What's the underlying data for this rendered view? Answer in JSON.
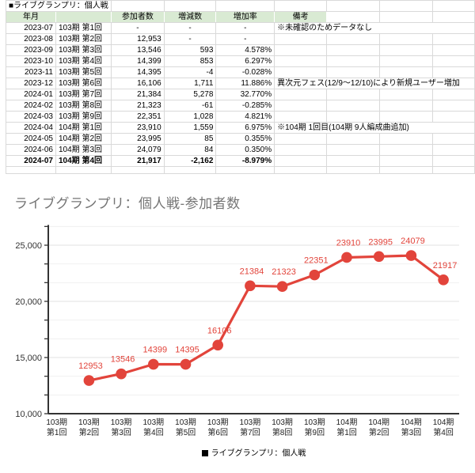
{
  "sheet": {
    "title": "■ライブグランプリ：個人戦",
    "header": [
      "年月",
      "",
      "参加者数",
      "増減数",
      "増加率",
      "備考"
    ],
    "header_bg": "#d9ead3",
    "grid_color": "#d9d9d9",
    "rows": [
      {
        "month": "2023-07",
        "round": "103期 第1回",
        "participants": "-",
        "change": "-",
        "rate": "-",
        "note": "※未確認のためデータなし",
        "bold": false
      },
      {
        "month": "2023-08",
        "round": "103期 第2回",
        "participants": "12,953",
        "change": "-",
        "rate": "-",
        "note": "",
        "bold": false
      },
      {
        "month": "2023-09",
        "round": "103期 第3回",
        "participants": "13,546",
        "change": "593",
        "rate": "4.578%",
        "note": "",
        "bold": false
      },
      {
        "month": "2023-10",
        "round": "103期 第4回",
        "participants": "14,399",
        "change": "853",
        "rate": "6.297%",
        "note": "",
        "bold": false
      },
      {
        "month": "2023-11",
        "round": "103期 第5回",
        "participants": "14,395",
        "change": "-4",
        "rate": "-0.028%",
        "note": "",
        "bold": false
      },
      {
        "month": "2023-12",
        "round": "103期 第6回",
        "participants": "16,106",
        "change": "1,711",
        "rate": "11.886%",
        "note": "異次元フェス(12/9〜12/10)により新規ユーザー増加",
        "bold": false
      },
      {
        "month": "2024-01",
        "round": "103期 第7回",
        "participants": "21,384",
        "change": "5,278",
        "rate": "32.770%",
        "note": "",
        "bold": false
      },
      {
        "month": "2024-02",
        "round": "103期 第8回",
        "participants": "21,323",
        "change": "-61",
        "rate": "-0.285%",
        "note": "",
        "bold": false
      },
      {
        "month": "2024-03",
        "round": "103期 第9回",
        "participants": "22,351",
        "change": "1,028",
        "rate": "4.821%",
        "note": "",
        "bold": false
      },
      {
        "month": "2024-04",
        "round": "104期 第1回",
        "participants": "23,910",
        "change": "1,559",
        "rate": "6.975%",
        "note": "※104期 1回目(104期 9人編成曲追加)",
        "bold": false
      },
      {
        "month": "2024-05",
        "round": "104期 第2回",
        "participants": "23,995",
        "change": "85",
        "rate": "0.355%",
        "note": "",
        "bold": false
      },
      {
        "month": "2024-06",
        "round": "104期 第3回",
        "participants": "24,079",
        "change": "84",
        "rate": "0.350%",
        "note": "",
        "bold": false
      },
      {
        "month": "2024-07",
        "round": "104期 第4回",
        "participants": "21,917",
        "change": "-2,162",
        "rate": "-8.979%",
        "note": "",
        "bold": true
      }
    ]
  },
  "chart_data": {
    "type": "line",
    "title": "ライブグランプリ：個人戦-参加者数",
    "title_color": "#757575",
    "categories": [
      "103期 第1回",
      "103期 第2回",
      "103期 第3回",
      "103期 第4回",
      "103期 第5回",
      "103期 第6回",
      "103期 第7回",
      "103期 第8回",
      "103期 第9回",
      "104期 第1回",
      "104期 第2回",
      "104期 第3回",
      "104期 第4回"
    ],
    "series": [
      {
        "name": "ライブグランプリ：個人戦",
        "color": "#e2443b",
        "values": [
          null,
          12953,
          13546,
          14399,
          14395,
          16106,
          21384,
          21323,
          22351,
          23910,
          23995,
          24079,
          21917
        ]
      }
    ],
    "data_labels": true,
    "ylim": [
      10000,
      26667
    ],
    "yticks": [
      10000,
      15000,
      20000,
      25000
    ],
    "ytick_labels": [
      "10,000",
      "15,000",
      "20,000",
      "25,000"
    ],
    "y_minor_step": 1666.67,
    "grid": true,
    "axis_color": "#333333",
    "axis_label_color": "#333333",
    "legend_position": "bottom",
    "legend_color": "#000000"
  }
}
